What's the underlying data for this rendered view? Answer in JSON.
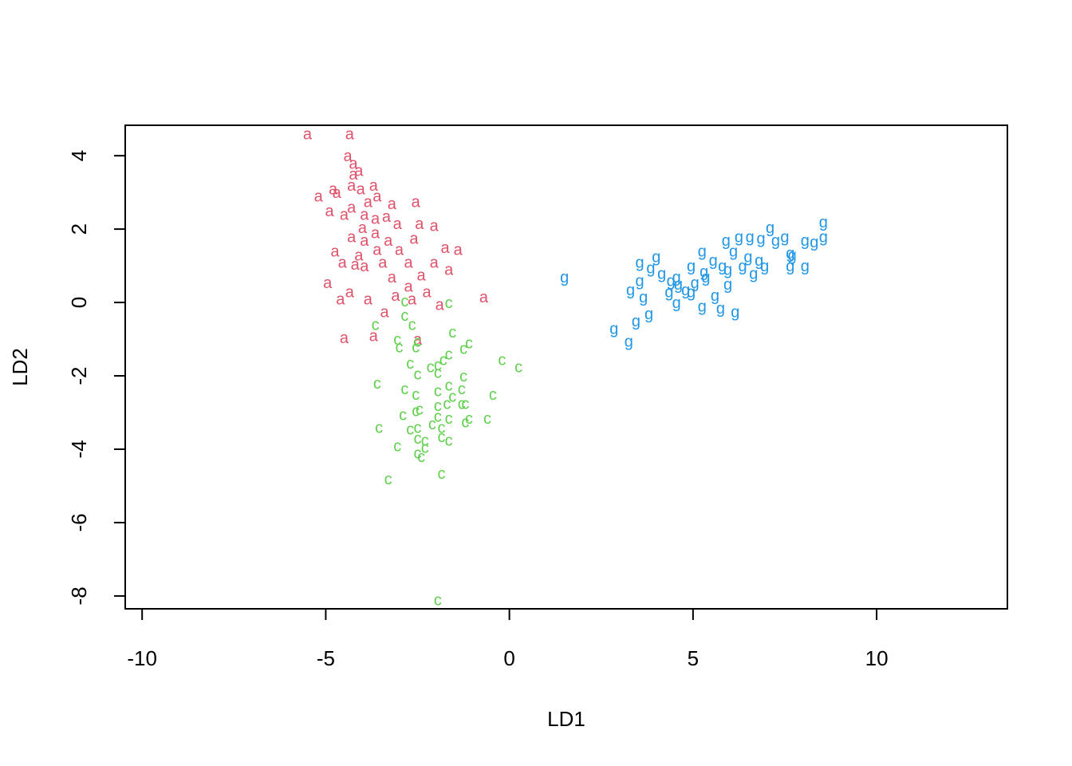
{
  "chart_data": {
    "type": "scatter",
    "x_label": "LD1",
    "y_label": "LD2",
    "xlim": [
      -10.46,
      13.56
    ],
    "ylim": [
      -8.35,
      4.83
    ],
    "xticks": [
      -10,
      -5,
      0,
      5,
      10
    ],
    "yticks": [
      -8,
      -6,
      -4,
      -2,
      0,
      2,
      4
    ],
    "grid": false,
    "series": [
      {
        "name": "a",
        "color": "#DF536B",
        "x": [
          -5.5,
          -4.35,
          -4.4,
          -4.25,
          -4.1,
          -4.25,
          -5.2,
          -4.8,
          -4.7,
          -4.3,
          -4.05,
          -3.7,
          -3.6,
          -3.85,
          -3.2,
          -2.55,
          -4.9,
          -4.5,
          -4.3,
          -3.95,
          -3.65,
          -3.35,
          -3.05,
          -2.45,
          -2.05,
          -4.0,
          -3.65,
          -4.3,
          -3.95,
          -3.3,
          -2.6,
          -1.75,
          -1.4,
          -4.75,
          -4.1,
          -3.6,
          -3.0,
          -4.55,
          -3.95,
          -3.45,
          -2.75,
          -2.05,
          -4.2,
          -3.2,
          -2.4,
          -1.65,
          -4.95,
          -4.35,
          -3.85,
          -4.6,
          -3.1,
          -2.65,
          -2.25,
          -0.7,
          -1.9,
          -3.4,
          -4.5,
          -3.7,
          -2.5,
          -2.75
        ],
        "values": [
          4.6,
          4.6,
          4.0,
          3.8,
          3.6,
          3.5,
          2.9,
          3.1,
          3.0,
          3.2,
          3.1,
          3.2,
          2.9,
          2.75,
          2.7,
          2.75,
          2.5,
          2.4,
          2.6,
          2.4,
          2.3,
          2.35,
          2.15,
          2.15,
          2.1,
          2.05,
          1.9,
          1.8,
          1.7,
          1.7,
          1.75,
          1.5,
          1.45,
          1.4,
          1.3,
          1.45,
          1.45,
          1.1,
          1.0,
          1.1,
          1.1,
          1.1,
          1.05,
          0.7,
          0.75,
          0.9,
          0.55,
          0.3,
          0.1,
          0.1,
          0.2,
          0.1,
          0.3,
          0.15,
          -0.05,
          -0.25,
          -0.95,
          -0.9,
          -1.0,
          0.45
        ]
      },
      {
        "name": "c",
        "color": "#61D04F",
        "x": [
          -2.85,
          -1.65,
          -2.85,
          -3.65,
          -2.65,
          -1.55,
          -3.05,
          -2.55,
          -3.0,
          -2.5,
          -1.1,
          -1.25,
          -1.65,
          -0.2,
          0.25,
          -2.7,
          -2.15,
          -1.95,
          -1.8,
          -2.5,
          -1.95,
          -3.6,
          -1.25,
          -2.85,
          -2.55,
          -1.95,
          -1.65,
          -1.3,
          -0.45,
          -1.55,
          -1.7,
          -1.95,
          -1.3,
          -1.2,
          -2.45,
          -2.55,
          -2.9,
          -1.95,
          -1.65,
          -1.1,
          -0.6,
          -2.1,
          -1.2,
          -3.55,
          -2.7,
          -2.5,
          -1.85,
          -2.5,
          -2.3,
          -1.85,
          -1.65,
          -3.05,
          -2.3,
          -2.5,
          -2.4,
          -3.3,
          -1.85,
          -1.95
        ],
        "values": [
          0.05,
          0.0,
          -0.35,
          -0.6,
          -0.6,
          -0.8,
          -1.0,
          -1.2,
          -1.2,
          -1.05,
          -1.1,
          -1.25,
          -1.4,
          -1.55,
          -1.75,
          -1.65,
          -1.75,
          -1.7,
          -1.55,
          -1.95,
          -1.9,
          -2.2,
          -2.0,
          -2.35,
          -2.5,
          -2.4,
          -2.25,
          -2.35,
          -2.5,
          -2.55,
          -2.75,
          -2.8,
          -2.75,
          -2.75,
          -2.9,
          -2.95,
          -3.05,
          -3.1,
          -3.15,
          -3.15,
          -3.15,
          -3.3,
          -3.25,
          -3.4,
          -3.45,
          -3.4,
          -3.4,
          -3.7,
          -3.75,
          -3.65,
          -3.75,
          -3.9,
          -3.95,
          -4.1,
          -4.2,
          -4.8,
          -4.65,
          -8.1
        ]
      },
      {
        "name": "g",
        "color": "#2297E6",
        "x": [
          1.5,
          2.85,
          3.25,
          3.45,
          3.8,
          3.55,
          4.0,
          3.85,
          3.55,
          3.3,
          3.65,
          4.15,
          4.4,
          4.55,
          4.35,
          4.55,
          4.95,
          4.95,
          5.25,
          5.05,
          5.25,
          5.55,
          5.6,
          5.75,
          5.9,
          5.95,
          6.1,
          6.15,
          6.25,
          6.35,
          6.55,
          6.65,
          6.85,
          6.95,
          7.1,
          7.25,
          7.5,
          7.65,
          7.7,
          7.65,
          8.05,
          8.05,
          8.3,
          8.55,
          8.55,
          6.8,
          6.5,
          5.95,
          5.3,
          4.8,
          5.35,
          5.8,
          4.6
        ],
        "values": [
          0.7,
          -0.7,
          -1.05,
          -0.5,
          -0.3,
          1.1,
          1.25,
          0.95,
          0.6,
          0.35,
          0.15,
          0.8,
          0.6,
          0.7,
          0.3,
          0.0,
          0.3,
          1.0,
          1.4,
          0.55,
          -0.1,
          1.15,
          0.2,
          -0.15,
          1.7,
          0.5,
          1.4,
          -0.25,
          1.8,
          1.0,
          1.8,
          0.8,
          1.75,
          1.0,
          2.05,
          1.7,
          1.8,
          1.35,
          1.3,
          1.0,
          1.7,
          1.0,
          1.65,
          1.8,
          2.2,
          1.15,
          1.25,
          0.9,
          0.85,
          0.35,
          0.7,
          1.0,
          0.5
        ]
      }
    ]
  }
}
